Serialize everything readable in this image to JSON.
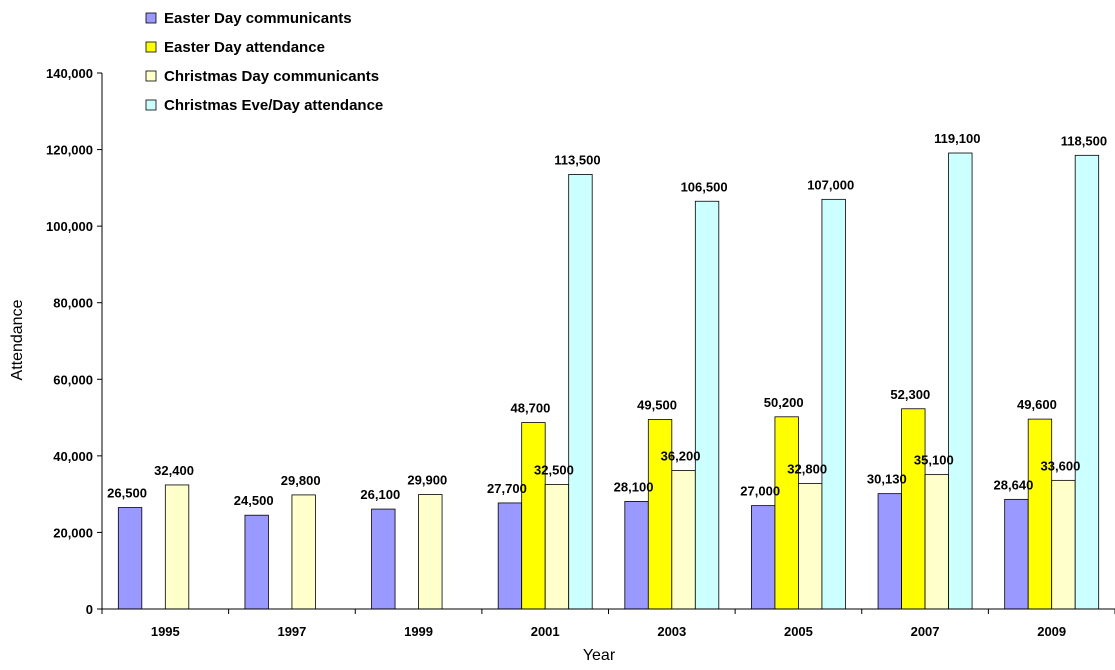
{
  "chart_data": {
    "type": "bar",
    "title": "",
    "xlabel": "Year",
    "ylabel": "Attendance",
    "ylim": [
      0,
      140000
    ],
    "yticks": [
      0,
      20000,
      40000,
      60000,
      80000,
      100000,
      120000,
      140000
    ],
    "ytick_labels": [
      "0",
      "20,000",
      "40,000",
      "60,000",
      "80,000",
      "100,000",
      "120,000",
      "140,000"
    ],
    "grid": false,
    "legend_position": "top-left",
    "categories": [
      "1995",
      "1997",
      "1999",
      "2001",
      "2003",
      "2005",
      "2007",
      "2009"
    ],
    "series": [
      {
        "name": "Easter Day communicants",
        "color": "#9999ff",
        "values": [
          26500,
          24500,
          26100,
          27700,
          28100,
          27000,
          30130,
          28640
        ],
        "labels": [
          "26,500",
          "24,500",
          "26,100",
          "27,700",
          "28,100",
          "27,000",
          "30,130",
          "28,640"
        ]
      },
      {
        "name": "Easter Day attendance",
        "color": "#ffff00",
        "values": [
          null,
          null,
          null,
          48700,
          49500,
          50200,
          52300,
          49600
        ],
        "labels": [
          null,
          null,
          null,
          "48,700",
          "49,500",
          "50,200",
          "52,300",
          "49,600"
        ]
      },
      {
        "name": "Christmas Day communicants",
        "color": "#ffffcc",
        "values": [
          32400,
          29800,
          29900,
          32500,
          36200,
          32800,
          35100,
          33600
        ],
        "labels": [
          "32,400",
          "29,800",
          "29,900",
          "32,500",
          "36,200",
          "32,800",
          "35,100",
          "33,600"
        ]
      },
      {
        "name": "Christmas Eve/Day attendance",
        "color": "#ccffff",
        "values": [
          null,
          null,
          null,
          113500,
          106500,
          107000,
          119100,
          118500
        ],
        "labels": [
          null,
          null,
          null,
          "113,500",
          "106,500",
          "107,000",
          "119,100",
          "118,500"
        ]
      }
    ]
  }
}
